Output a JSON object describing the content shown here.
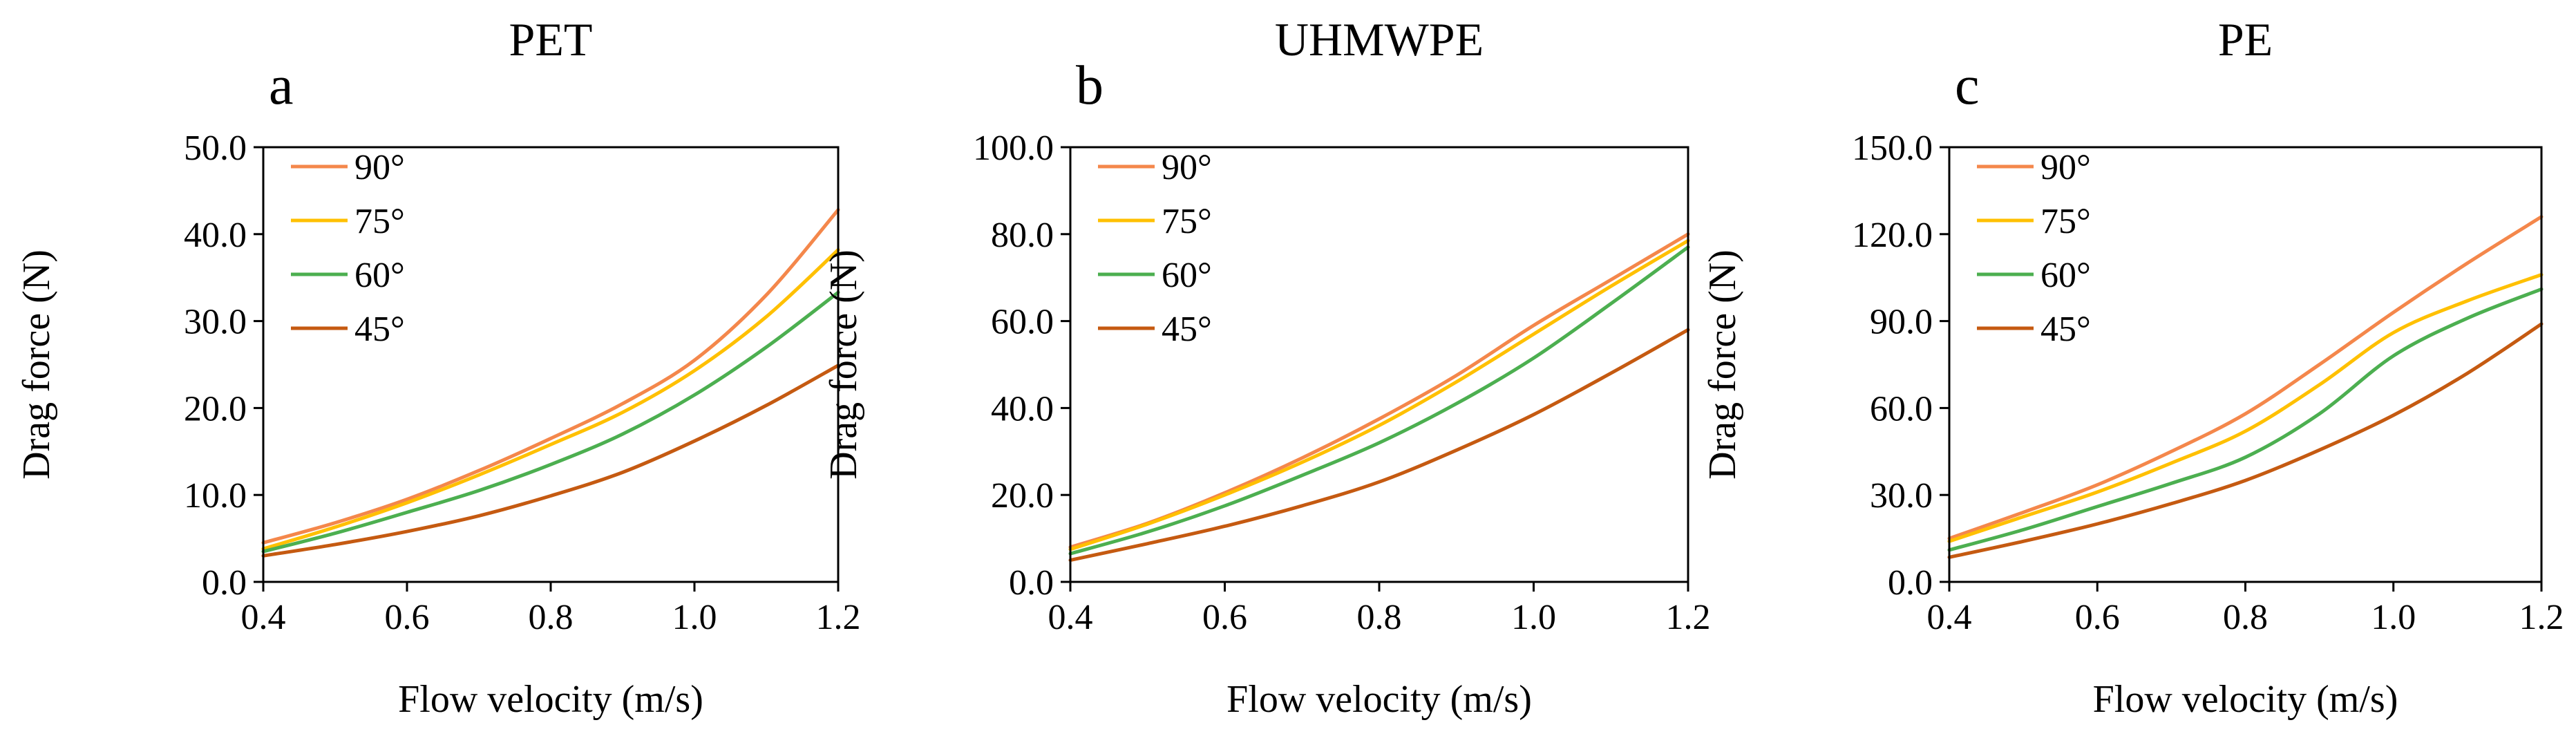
{
  "chart_data": [
    {
      "type": "line",
      "panel_letter": "a",
      "title": "PET",
      "xlabel": "Flow velocity (m/s)",
      "ylabel": "Drag force (N)",
      "xlim": [
        0.4,
        1.2
      ],
      "ylim": [
        0.0,
        50.0
      ],
      "x": [
        0.4,
        0.5,
        0.6,
        0.7,
        0.8,
        0.9,
        1.0,
        1.1,
        1.2
      ],
      "x_tick_labels": [
        "0.4",
        "0.6",
        "0.8",
        "1.0",
        "1.2"
      ],
      "y_tick_labels": [
        "0.0",
        "10.0",
        "20.0",
        "30.0",
        "40.0",
        "50.0"
      ],
      "legend_position": "top-left",
      "series": [
        {
          "name": "90°",
          "color": "#F4874B",
          "values": [
            4.5,
            6.8,
            9.5,
            12.8,
            16.5,
            20.5,
            25.5,
            33.0,
            42.8
          ]
        },
        {
          "name": "75°",
          "color": "#FFC000",
          "values": [
            3.8,
            6.3,
            9.1,
            12.3,
            15.8,
            19.5,
            24.3,
            30.5,
            38.2
          ]
        },
        {
          "name": "60°",
          "color": "#4CAF50",
          "values": [
            3.5,
            5.6,
            8.0,
            10.5,
            13.5,
            17.0,
            21.5,
            27.0,
            33.3
          ]
        },
        {
          "name": "45°",
          "color": "#C55A11",
          "values": [
            3.0,
            4.3,
            5.8,
            7.6,
            9.9,
            12.6,
            16.2,
            20.3,
            24.9
          ]
        }
      ]
    },
    {
      "type": "line",
      "panel_letter": "b",
      "title": "UHMWPE",
      "xlabel": "Flow velocity (m/s)",
      "ylabel": "Drag force (N)",
      "xlim": [
        0.4,
        1.2
      ],
      "ylim": [
        0.0,
        100.0
      ],
      "x": [
        0.4,
        0.5,
        0.6,
        0.7,
        0.8,
        0.9,
        1.0,
        1.1,
        1.2
      ],
      "x_tick_labels": [
        "0.4",
        "0.6",
        "0.8",
        "1.0",
        "1.2"
      ],
      "y_tick_labels": [
        "0.0",
        "20.0",
        "40.0",
        "60.0",
        "80.0",
        "100.0"
      ],
      "legend_position": "top-left",
      "series": [
        {
          "name": "90°",
          "color": "#F4874B",
          "values": [
            8.0,
            13.5,
            20.5,
            28.5,
            37.5,
            47.5,
            59.0,
            69.5,
            80.0
          ]
        },
        {
          "name": "75°",
          "color": "#FFC000",
          "values": [
            7.5,
            13.3,
            20.0,
            27.5,
            36.0,
            46.0,
            57.0,
            68.0,
            78.5
          ]
        },
        {
          "name": "60°",
          "color": "#4CAF50",
          "values": [
            6.5,
            11.5,
            17.5,
            24.5,
            32.0,
            41.0,
            51.5,
            64.0,
            77.0
          ]
        },
        {
          "name": "45°",
          "color": "#C55A11",
          "values": [
            5.0,
            8.8,
            12.8,
            17.5,
            23.0,
            30.3,
            38.5,
            48.0,
            58.0
          ]
        }
      ]
    },
    {
      "type": "line",
      "panel_letter": "c",
      "title": "PE",
      "xlabel": "Flow velocity (m/s)",
      "ylabel": "Drag force (N)",
      "xlim": [
        0.4,
        1.2
      ],
      "ylim": [
        0.0,
        150.0
      ],
      "x": [
        0.4,
        0.5,
        0.6,
        0.7,
        0.8,
        0.9,
        1.0,
        1.1,
        1.2
      ],
      "x_tick_labels": [
        "0.4",
        "0.6",
        "0.8",
        "1.0",
        "1.2"
      ],
      "y_tick_labels": [
        "0.0",
        "30.0",
        "60.0",
        "90.0",
        "120.0",
        "150.0"
      ],
      "legend_position": "top-left",
      "series": [
        {
          "name": "90°",
          "color": "#F4874B",
          "values": [
            15.0,
            24.0,
            33.5,
            45.0,
            58.0,
            75.0,
            93.0,
            110.0,
            126.0
          ]
        },
        {
          "name": "75°",
          "color": "#FFC000",
          "values": [
            14.0,
            22.5,
            31.0,
            41.0,
            52.0,
            68.0,
            86.0,
            97.0,
            106.0
          ]
        },
        {
          "name": "60°",
          "color": "#4CAF50",
          "values": [
            11.0,
            18.0,
            26.0,
            34.0,
            43.0,
            58.0,
            78.0,
            91.0,
            101.0
          ]
        },
        {
          "name": "45°",
          "color": "#C55A11",
          "values": [
            8.5,
            14.0,
            20.0,
            27.0,
            35.0,
            45.5,
            57.5,
            72.0,
            89.0
          ]
        }
      ]
    }
  ]
}
